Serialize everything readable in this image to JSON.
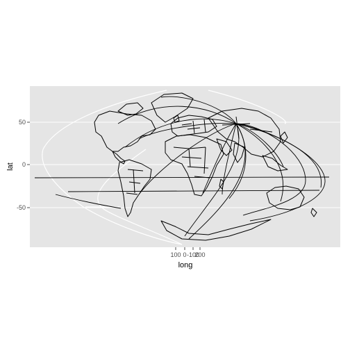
{
  "map": {
    "projection": "sinusoidal",
    "panel_background": "#e5e5e5",
    "gridline_color": "#ffffff",
    "line_color": "#000000",
    "x_axis": {
      "title": "long",
      "ticks": [
        {
          "label": "100"
        },
        {
          "label": "0"
        },
        {
          "label": "-100"
        },
        {
          "label": "200"
        }
      ]
    },
    "y_axis": {
      "title": "lat",
      "ticks": [
        {
          "label": "50",
          "value": 50
        },
        {
          "label": "0",
          "value": 0
        },
        {
          "label": "-50",
          "value": -50
        }
      ]
    },
    "layers": [
      "world-coastlines",
      "country-borders",
      "flight-routes"
    ]
  }
}
